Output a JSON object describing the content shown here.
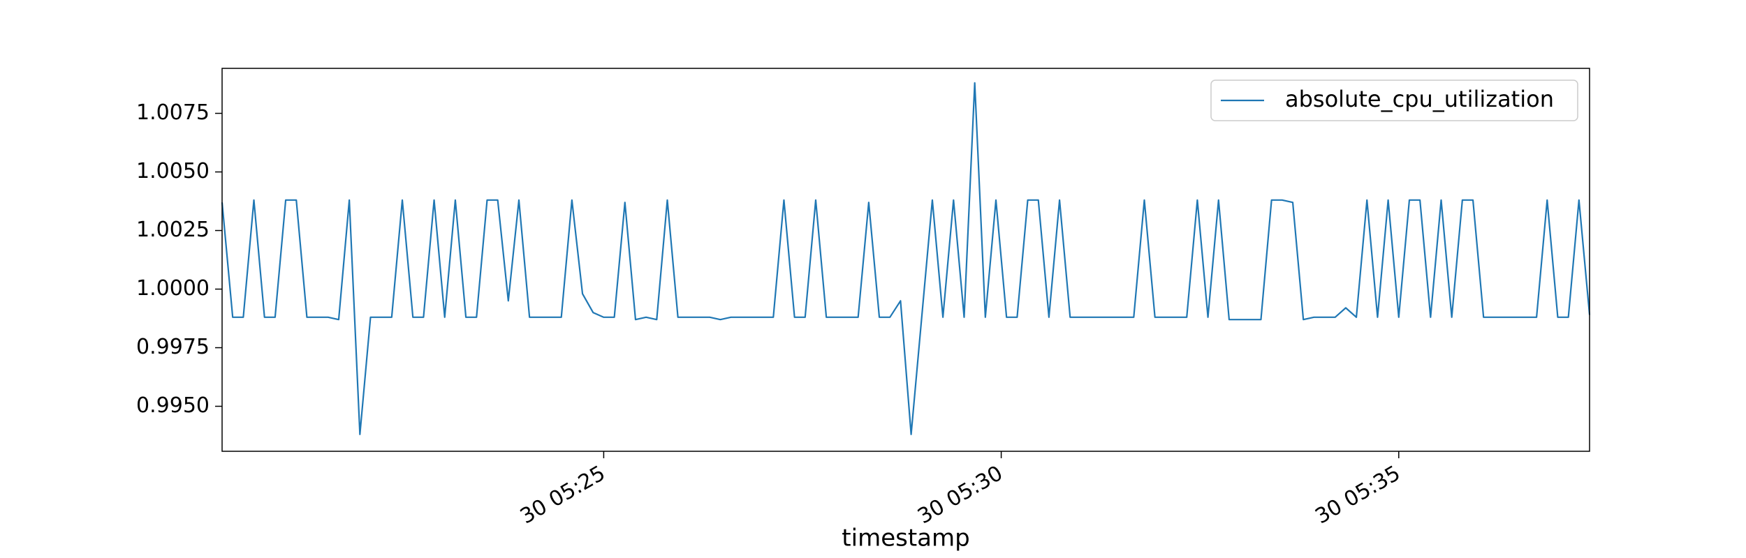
{
  "chart_data": {
    "type": "line",
    "x_label": "timestamp",
    "x": [
      1212,
      1220,
      1228,
      1236,
      1244,
      1252,
      1260,
      1268,
      1276,
      1284,
      1292,
      1300,
      1308,
      1316,
      1324,
      1332,
      1340,
      1348,
      1356,
      1364,
      1372,
      1380,
      1388,
      1396,
      1404,
      1412,
      1420,
      1428,
      1436,
      1444,
      1452,
      1460,
      1468,
      1476,
      1484,
      1492,
      1500,
      1508,
      1516,
      1524,
      1532,
      1540,
      1548,
      1556,
      1564,
      1572,
      1580,
      1588,
      1596,
      1604,
      1612,
      1620,
      1628,
      1636,
      1644,
      1652,
      1660,
      1668,
      1676,
      1684,
      1692,
      1700,
      1708,
      1716,
      1724,
      1732,
      1740,
      1748,
      1756,
      1764,
      1772,
      1780,
      1788,
      1796,
      1804,
      1812,
      1820,
      1828,
      1836,
      1844,
      1852,
      1860,
      1868,
      1876,
      1884,
      1892,
      1900,
      1908,
      1916,
      1924,
      1932,
      1940,
      1948,
      1956,
      1964,
      1972,
      1980,
      1988,
      1996,
      2004,
      2012,
      2020,
      2028,
      2036,
      2044,
      2052,
      2060,
      2068,
      2076,
      2084,
      2092,
      2100,
      2108,
      2116,
      2124,
      2132,
      2140,
      2148,
      2156,
      2164,
      2172,
      2180,
      2188,
      2196,
      2204,
      2212,
      2220,
      2228,
      2236,
      2244
    ],
    "series": [
      {
        "name": "absolute_cpu_utilization",
        "color": "#1f77b4",
        "values": [
          1.0037,
          0.9988,
          0.9988,
          1.0038,
          0.9988,
          0.9988,
          1.0038,
          1.0038,
          0.9988,
          0.9988,
          0.9988,
          0.9987,
          1.0038,
          0.9938,
          0.9988,
          0.9988,
          0.9988,
          1.0038,
          0.9988,
          0.9988,
          1.0038,
          0.9988,
          1.0038,
          0.9988,
          0.9988,
          1.0038,
          1.0038,
          0.9995,
          1.0038,
          0.9988,
          0.9988,
          0.9988,
          0.9988,
          1.0038,
          0.9998,
          0.999,
          0.9988,
          0.9988,
          1.0037,
          0.9987,
          0.9988,
          0.9987,
          1.0038,
          0.9988,
          0.9988,
          0.9988,
          0.9988,
          0.9987,
          0.9988,
          0.9988,
          0.9988,
          0.9988,
          0.9988,
          1.0038,
          0.9988,
          0.9988,
          1.0038,
          0.9988,
          0.9988,
          0.9988,
          0.9988,
          1.0037,
          0.9988,
          0.9988,
          0.9995,
          0.9938,
          0.9988,
          1.0038,
          0.9988,
          1.0038,
          0.9988,
          1.0088,
          0.9988,
          1.0038,
          0.9988,
          0.9988,
          1.0038,
          1.0038,
          0.9988,
          1.0038,
          0.9988,
          0.9988,
          0.9988,
          0.9988,
          0.9988,
          0.9988,
          0.9988,
          1.0038,
          0.9988,
          0.9988,
          0.9988,
          0.9988,
          1.0038,
          0.9988,
          1.0038,
          0.9987,
          0.9987,
          0.9987,
          0.9987,
          1.0038,
          1.0038,
          1.0037,
          0.9987,
          0.9988,
          0.9988,
          0.9988,
          0.9992,
          0.9988,
          1.0038,
          0.9988,
          1.0038,
          0.9988,
          1.0038,
          1.0038,
          0.9988,
          1.0038,
          0.9988,
          1.0038,
          1.0038,
          0.9988,
          0.9988,
          0.9988,
          0.9988,
          0.9988,
          0.9988,
          1.0038,
          0.9988,
          0.9988,
          1.0038,
          0.9989
        ]
      }
    ],
    "xlim": [
      1212,
      2244
    ],
    "xticks": [
      {
        "value": 1500,
        "label": "30 05:25"
      },
      {
        "value": 1800,
        "label": "30 05:30"
      },
      {
        "value": 2100,
        "label": "30 05:35"
      }
    ],
    "ylim": [
      0.99308,
      1.00942
    ],
    "yticks": [
      {
        "value": 0.995,
        "label": "0.9950"
      },
      0.9975,
      {
        "value": 1,
        "label": "1.0000"
      },
      1.0025,
      {
        "value": 1.005,
        "label": "1.0050"
      },
      1.0075
    ],
    "grid": false,
    "legend": "upper right"
  }
}
